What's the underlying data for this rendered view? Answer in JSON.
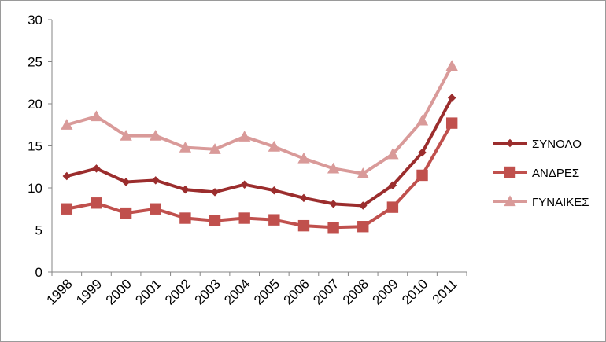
{
  "chart_data": {
    "type": "line",
    "categories": [
      "1998",
      "1999",
      "2000",
      "2001",
      "2002",
      "2003",
      "2004",
      "2005",
      "2006",
      "2007",
      "2008",
      "2009",
      "2010",
      "2011"
    ],
    "series": [
      {
        "name": "ΣΥΝΟΛΟ",
        "marker": "diamond",
        "color": "#9b2d2d",
        "values": [
          11.4,
          12.3,
          10.7,
          10.9,
          9.8,
          9.5,
          10.4,
          9.7,
          8.8,
          8.1,
          7.9,
          10.3,
          14.2,
          20.7
        ]
      },
      {
        "name": "ΑΝΔΡΕΣ",
        "marker": "square",
        "color": "#c0504d",
        "values": [
          7.5,
          8.2,
          7.0,
          7.5,
          6.4,
          6.1,
          6.4,
          6.2,
          5.5,
          5.3,
          5.4,
          7.7,
          11.5,
          17.7
        ]
      },
      {
        "name": "ΓΥΝΑΙΚΕΣ",
        "marker": "triangle",
        "color": "#d99a99",
        "values": [
          17.5,
          18.5,
          16.2,
          16.2,
          14.8,
          14.6,
          16.1,
          14.9,
          13.5,
          12.3,
          11.7,
          14.0,
          18.0,
          24.5
        ]
      }
    ],
    "y_ticks": [
      "0",
      "5",
      "10",
      "15",
      "20",
      "25",
      "30"
    ],
    "ylim": [
      0,
      30
    ],
    "grid": false,
    "legend_position": "right",
    "title": "",
    "xlabel": "",
    "ylabel": ""
  }
}
